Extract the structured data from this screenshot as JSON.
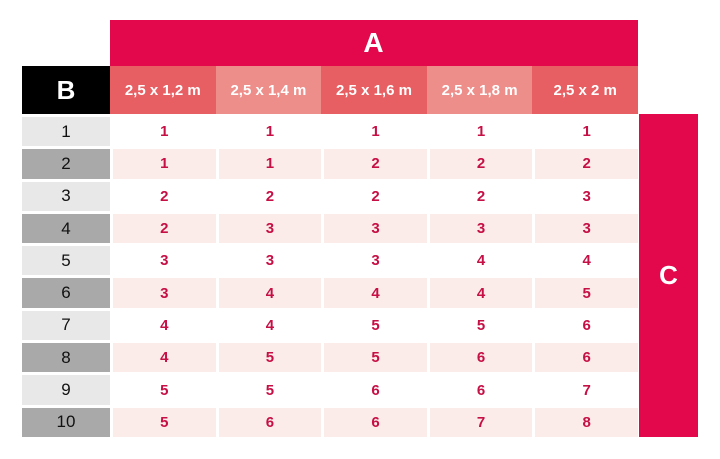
{
  "colors": {
    "accent_crimson": "#e2084b",
    "value_text": "#c60f45",
    "header_coral_dark": "#e85f63",
    "header_salmon_light": "#ee8e8a",
    "row_label_gray_light": "#e8e8e8",
    "row_label_gray_dark": "#a9a9a9",
    "data_row_pink": "#fbecea",
    "corner_black": "#000000"
  },
  "table": {
    "group_header": "A",
    "corner_header": "B",
    "side_header": "C",
    "columns": [
      "2,5 x 1,2 m",
      "2,5 x 1,4 m",
      "2,5 x 1,6 m",
      "2,5 x 1,8 m",
      "2,5 x 2 m"
    ],
    "rows": [
      {
        "label": "1",
        "values": [
          "1",
          "1",
          "1",
          "1",
          "1"
        ]
      },
      {
        "label": "2",
        "values": [
          "1",
          "1",
          "2",
          "2",
          "2"
        ]
      },
      {
        "label": "3",
        "values": [
          "2",
          "2",
          "2",
          "2",
          "3"
        ]
      },
      {
        "label": "4",
        "values": [
          "2",
          "3",
          "3",
          "3",
          "3"
        ]
      },
      {
        "label": "5",
        "values": [
          "3",
          "3",
          "3",
          "4",
          "4"
        ]
      },
      {
        "label": "6",
        "values": [
          "3",
          "4",
          "4",
          "4",
          "5"
        ]
      },
      {
        "label": "7",
        "values": [
          "4",
          "4",
          "5",
          "5",
          "6"
        ]
      },
      {
        "label": "8",
        "values": [
          "4",
          "5",
          "5",
          "6",
          "6"
        ]
      },
      {
        "label": "9",
        "values": [
          "5",
          "5",
          "6",
          "6",
          "7"
        ]
      },
      {
        "label": "10",
        "values": [
          "5",
          "6",
          "6",
          "7",
          "8"
        ]
      }
    ]
  }
}
